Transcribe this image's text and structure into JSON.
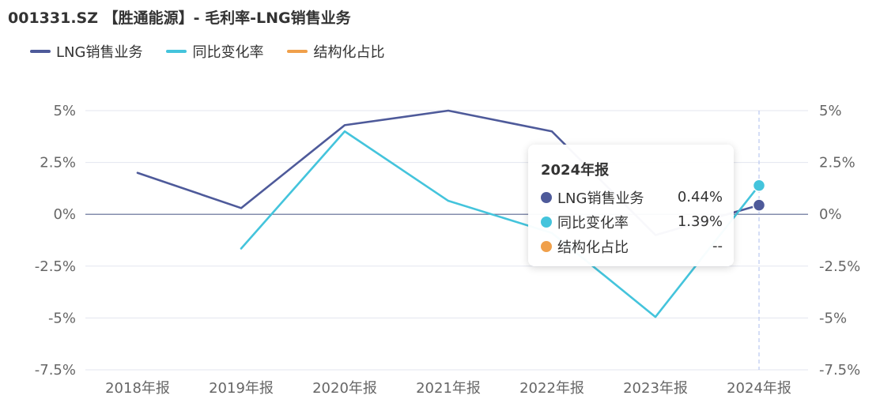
{
  "title": "001331.SZ 【胜通能源】- 毛利率-LNG销售业务",
  "colors": {
    "series1": "#4e5a9a",
    "series2": "#44c4dc",
    "series3": "#f0a04b",
    "grid": "#e3e6ef",
    "zero_line": "#5a6690",
    "crosshair": "#b9c7ef",
    "axis_text": "#666666"
  },
  "tooltip": {
    "title": "2024年报",
    "rows": [
      {
        "label": "LNG销售业务",
        "value": "0.44%"
      },
      {
        "label": "同比变化率",
        "value": "1.39%"
      },
      {
        "label": "结构化占比",
        "value": "--"
      }
    ]
  },
  "chart_data": {
    "type": "line",
    "title": "001331.SZ 【胜通能源】- 毛利率-LNG销售业务",
    "categories": [
      "2018年报",
      "2019年报",
      "2020年报",
      "2021年报",
      "2022年报",
      "2023年报",
      "2024年报"
    ],
    "series": [
      {
        "name": "LNG销售业务",
        "axis": "left",
        "values": [
          2.0,
          0.3,
          4.3,
          5.0,
          4.0,
          -1.0,
          0.44
        ]
      },
      {
        "name": "同比变化率",
        "axis": "right",
        "values": [
          null,
          -1.65,
          4.0,
          0.65,
          -0.9,
          -4.95,
          1.39
        ]
      },
      {
        "name": "结构化占比",
        "axis": "right",
        "values": [
          null,
          null,
          null,
          null,
          null,
          null,
          null
        ]
      }
    ],
    "y_left": {
      "min": -7.5,
      "max": 5,
      "ticks": [
        "5%",
        "2.5%",
        "0%",
        "-2.5%",
        "-5%",
        "-7.5%"
      ]
    },
    "y_right": {
      "min": -7.5,
      "max": 5,
      "ticks": [
        "5%",
        "2.5%",
        "0%",
        "-2.5%",
        "-5%",
        "-7.5%"
      ]
    },
    "grid": true,
    "legend_position": "top-left",
    "highlight_category": "2024年报"
  }
}
